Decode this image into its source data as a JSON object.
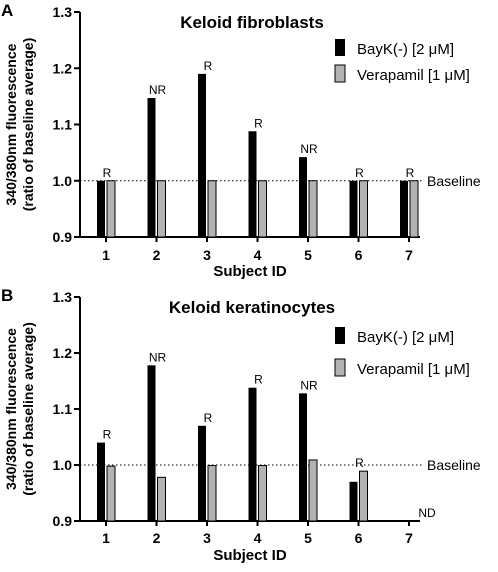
{
  "chart_data": [
    {
      "type": "bar",
      "panel_label": "A",
      "title": "Keloid fibroblasts",
      "xlabel": "Subject ID",
      "ylabel_line1": "340/380nm fluorescence",
      "ylabel_line2": "(ratio of baseline average)",
      "categories": [
        "1",
        "2",
        "3",
        "4",
        "5",
        "6",
        "7"
      ],
      "ylim": [
        0.9,
        1.3
      ],
      "yticks": [
        "0.9",
        "1.0",
        "1.1",
        "1.2",
        "1.3"
      ],
      "series": [
        {
          "name": "BayK(-) [2 μM]",
          "color": "#000000",
          "values": [
            1.0,
            1.147,
            1.19,
            1.088,
            1.042,
            1.0,
            1.0
          ]
        },
        {
          "name": "Verapamil [1 μM]",
          "color": "#b3b3b3",
          "values": [
            1.0,
            1.0,
            1.0,
            1.0,
            1.0,
            1.0,
            1.0
          ]
        }
      ],
      "annotations": [
        "R",
        "NR",
        "R",
        "R",
        "NR",
        "R",
        "R"
      ],
      "reference_line": {
        "value": 1.0,
        "label": "Baseline"
      },
      "legend_position": "top-right"
    },
    {
      "type": "bar",
      "panel_label": "B",
      "title": "Keloid keratinocytes",
      "xlabel": "Subject ID",
      "ylabel_line1": "340/380nm fluorescence",
      "ylabel_line2": "(ratio of baseline average)",
      "categories": [
        "1",
        "2",
        "3",
        "4",
        "5",
        "6",
        "7"
      ],
      "ylim": [
        0.9,
        1.3
      ],
      "yticks": [
        "0.9",
        "1.0",
        "1.1",
        "1.2",
        "1.3"
      ],
      "series": [
        {
          "name": "BayK(-) [2 μM]",
          "color": "#000000",
          "values": [
            1.04,
            1.178,
            1.07,
            1.138,
            1.128,
            0.97,
            null
          ]
        },
        {
          "name": "Verapamil [1 μM]",
          "color": "#b3b3b3",
          "values": [
            0.998,
            0.978,
            0.999,
            0.999,
            1.009,
            0.989,
            null
          ]
        }
      ],
      "annotations": [
        "R",
        "NR",
        "R",
        "R",
        "NR",
        "R",
        "ND"
      ],
      "reference_line": {
        "value": 1.0,
        "label": "Baseline"
      },
      "legend_position": "top-right"
    }
  ]
}
